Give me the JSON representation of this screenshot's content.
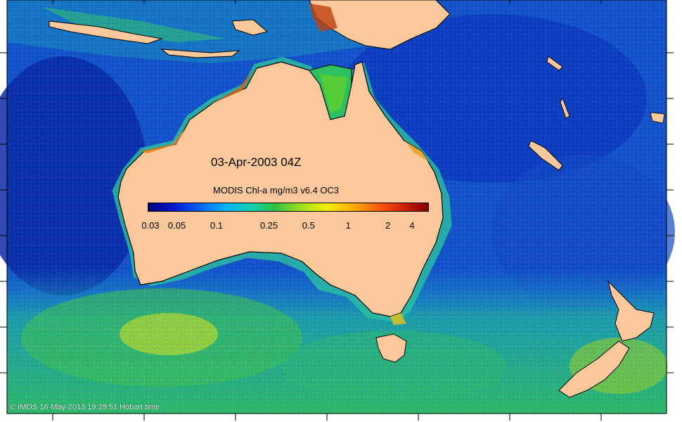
{
  "map": {
    "date_title": "03-Apr-2003 04Z",
    "colorbar": {
      "title": "MODIS Chl-a mg/m3 v6.4 OC3",
      "ticks": [
        "0.03",
        "0.05",
        "0.1",
        "0.25",
        "0.5",
        "1",
        "2",
        "4"
      ],
      "colors": [
        "#00007a",
        "#0018c8",
        "#0060ff",
        "#00b0ff",
        "#10d0b0",
        "#30c040",
        "#a0e020",
        "#f0f000",
        "#ffb000",
        "#ff6000",
        "#d02000",
        "#800000"
      ]
    },
    "credit": "© IMOS 16-May-2013 19:29:51 Hobart time",
    "colors": {
      "land": "#fbc89c",
      "coastline": "#000000",
      "ocean_deep": "#0a32b4",
      "ocean_mid": "#1a78e0",
      "ocean_high": "#2ec47a"
    }
  }
}
